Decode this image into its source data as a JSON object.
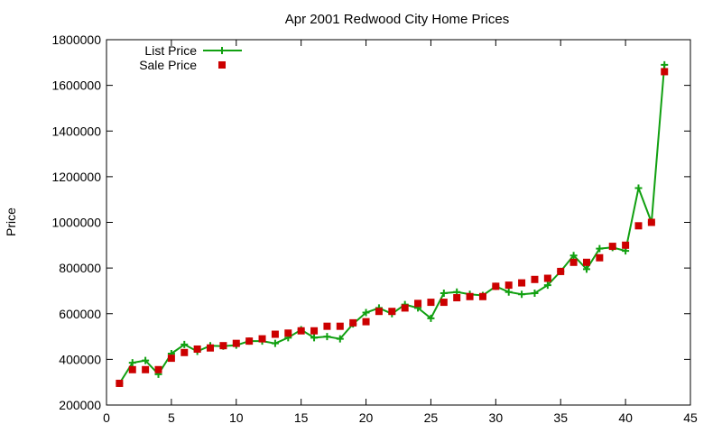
{
  "chart_data": {
    "type": "line",
    "title": "Apr 2001 Redwood City Home Prices",
    "xlabel": "",
    "ylabel": "Price",
    "xlim": [
      0,
      45
    ],
    "ylim": [
      200000,
      1800000
    ],
    "x_ticks": [
      0,
      5,
      10,
      15,
      20,
      25,
      30,
      35,
      40,
      45
    ],
    "y_ticks": [
      200000,
      400000,
      600000,
      800000,
      1000000,
      1200000,
      1400000,
      1600000,
      1800000
    ],
    "grid": false,
    "legend_position": "top-left",
    "series": [
      {
        "name": "List Price",
        "style": "line-with-plus-markers",
        "color": "#11a011",
        "x": [
          1,
          2,
          3,
          4,
          5,
          6,
          7,
          8,
          9,
          10,
          11,
          12,
          13,
          14,
          15,
          16,
          17,
          18,
          19,
          20,
          21,
          22,
          23,
          24,
          25,
          26,
          27,
          28,
          29,
          30,
          31,
          32,
          33,
          34,
          35,
          36,
          37,
          38,
          39,
          40,
          41,
          42,
          43
        ],
        "values": [
          295000,
          385000,
          395000,
          335000,
          425000,
          465000,
          435000,
          460000,
          458000,
          462000,
          480000,
          480000,
          470000,
          495000,
          530000,
          495000,
          500000,
          490000,
          555000,
          605000,
          625000,
          600000,
          640000,
          625000,
          580000,
          690000,
          695000,
          685000,
          680000,
          720000,
          695000,
          685000,
          690000,
          725000,
          785000,
          855000,
          795000,
          885000,
          890000,
          875000,
          1150000,
          1000000,
          1690000
        ]
      },
      {
        "name": "Sale Price",
        "style": "square-markers",
        "color": "#cc0000",
        "x": [
          1,
          2,
          3,
          4,
          5,
          6,
          7,
          8,
          9,
          10,
          11,
          12,
          13,
          14,
          15,
          16,
          17,
          18,
          19,
          20,
          21,
          22,
          23,
          24,
          25,
          26,
          27,
          28,
          29,
          30,
          31,
          32,
          33,
          34,
          35,
          36,
          37,
          38,
          39,
          40,
          41,
          42,
          43
        ],
        "values": [
          295000,
          355000,
          355000,
          355000,
          405000,
          430000,
          445000,
          450000,
          460000,
          470000,
          480000,
          490000,
          510000,
          515000,
          525000,
          525000,
          545000,
          545000,
          560000,
          565000,
          610000,
          610000,
          625000,
          645000,
          650000,
          650000,
          670000,
          675000,
          675000,
          720000,
          725000,
          735000,
          750000,
          755000,
          785000,
          825000,
          825000,
          845000,
          895000,
          900000,
          985000,
          1000000,
          1660000
        ]
      }
    ]
  }
}
